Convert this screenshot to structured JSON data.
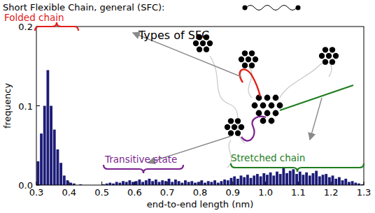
{
  "chart_data": {
    "type": "histogram",
    "title": "Short Flexible Chain, general (SFC):",
    "subtitle": "Types of SFC",
    "x_label": "end-to-end length (nm)",
    "y_label": "frequency",
    "color": "#1c1c78",
    "grid": false,
    "bins": [
      0.3,
      0.31,
      0.32,
      0.33,
      0.34,
      0.35,
      0.36,
      0.37,
      0.38,
      0.39,
      0.4,
      0.41,
      0.42,
      0.43,
      0.44,
      0.45,
      0.46,
      0.47,
      0.48,
      0.49,
      0.5,
      0.51,
      0.52,
      0.53,
      0.54,
      0.55,
      0.56,
      0.57,
      0.58,
      0.59,
      0.6,
      0.61,
      0.62,
      0.63,
      0.64,
      0.65,
      0.66,
      0.67,
      0.68,
      0.69,
      0.7,
      0.71,
      0.72,
      0.73,
      0.74,
      0.75,
      0.76,
      0.77,
      0.78,
      0.79,
      0.8,
      0.81,
      0.82,
      0.83,
      0.84,
      0.85,
      0.86,
      0.87,
      0.88,
      0.89,
      0.9,
      0.91,
      0.92,
      0.93,
      0.94,
      0.95,
      0.96,
      0.97,
      0.98,
      0.99,
      1.0,
      1.01,
      1.02,
      1.03,
      1.04,
      1.05,
      1.06,
      1.07,
      1.08,
      1.09,
      1.1,
      1.11,
      1.12,
      1.13,
      1.14,
      1.15,
      1.16,
      1.17,
      1.18,
      1.19,
      1.2,
      1.21,
      1.22,
      1.23,
      1.24,
      1.25,
      1.26,
      1.27,
      1.28,
      1.29,
      1.3
    ],
    "values": [
      0.03,
      0.065,
      0.1,
      0.145,
      0.1,
      0.07,
      0.045,
      0.028,
      0.012,
      0.006,
      0.003,
      0.002,
      0,
      0.001,
      0,
      0,
      0,
      0,
      0,
      0,
      0.001,
      0.002,
      0.003,
      0.002,
      0.004,
      0.003,
      0.005,
      0.004,
      0.006,
      0.004,
      0.005,
      0.007,
      0.004,
      0.006,
      0.008,
      0.005,
      0.007,
      0.004,
      0.006,
      0.005,
      0.008,
      0.004,
      0.007,
      0.005,
      0.003,
      0.006,
      0.004,
      0.005,
      0.003,
      0.004,
      0.006,
      0.003,
      0.005,
      0.004,
      0.006,
      0.003,
      0.005,
      0.007,
      0.006,
      0.009,
      0.011,
      0.008,
      0.012,
      0.01,
      0.013,
      0.009,
      0.012,
      0.014,
      0.011,
      0.015,
      0.013,
      0.016,
      0.012,
      0.017,
      0.014,
      0.022,
      0.015,
      0.018,
      0.02,
      0.014,
      0.017,
      0.013,
      0.016,
      0.012,
      0.015,
      0.018,
      0.011,
      0.013,
      0.014,
      0.01,
      0.012,
      0.008,
      0.01,
      0.006,
      0.008,
      0.004,
      0.005,
      0.003,
      0.002,
      0.001
    ],
    "xlim": [
      0.3,
      1.3
    ],
    "ylim": [
      0,
      0.2
    ],
    "xticks": [
      0.3,
      0.4,
      0.5,
      0.6,
      0.7,
      0.8,
      0.9,
      {
        "value": 1,
        "label": "1.0"
      },
      1.1,
      1.2,
      1.3
    ],
    "yticks": [
      {
        "value": 0,
        "label": "0.0"
      },
      0.1,
      0.2
    ],
    "annotations": [
      {
        "text": "Folded chain",
        "color": "#e3201b"
      },
      {
        "text": "Transitive state",
        "color": "#7a1f8f"
      },
      {
        "text": "Stretched chain",
        "color": "#1e7d1e"
      }
    ]
  }
}
